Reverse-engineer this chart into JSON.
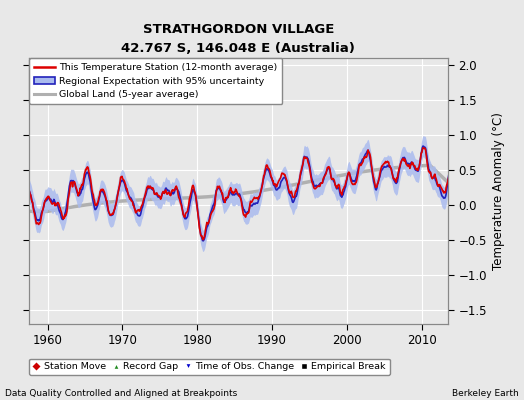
{
  "title": "STRATHGORDON VILLAGE",
  "subtitle": "42.767 S, 146.048 E (Australia)",
  "xlabel_bottom": "Data Quality Controlled and Aligned at Breakpoints",
  "xlabel_right": "Berkeley Earth",
  "ylabel": "Temperature Anomaly (°C)",
  "year_start": 1957,
  "year_end": 2014,
  "ylim": [
    -1.7,
    2.1
  ],
  "yticks": [
    -1.5,
    -1.0,
    -0.5,
    0.0,
    0.5,
    1.0,
    1.5,
    2.0
  ],
  "xticks": [
    1960,
    1970,
    1980,
    1990,
    2000,
    2010
  ],
  "bg_color": "#e8e8e8",
  "plot_bg_color": "#e8e8e8",
  "station_color": "#dd0000",
  "regional_color": "#2222bb",
  "regional_fill_color": "#aabbee",
  "global_color": "#b0b0b0",
  "global_lw": 2.5,
  "station_lw": 1.2,
  "regional_lw": 1.2,
  "legend_items": [
    {
      "label": "This Temperature Station (12-month average)",
      "color": "#dd0000",
      "lw": 1.5
    },
    {
      "label": "Regional Expectation with 95% uncertainty",
      "color": "#2222bb",
      "lw": 1.5
    },
    {
      "label": "Global Land (5-year average)",
      "color": "#b0b0b0",
      "lw": 2.0
    }
  ],
  "marker_items": [
    {
      "label": "Station Move",
      "color": "#cc0000",
      "marker": "D"
    },
    {
      "label": "Record Gap",
      "color": "#228B22",
      "marker": "^"
    },
    {
      "label": "Time of Obs. Change",
      "color": "#0000cc",
      "marker": "v"
    },
    {
      "label": "Empirical Break",
      "color": "#000000",
      "marker": "s"
    }
  ]
}
